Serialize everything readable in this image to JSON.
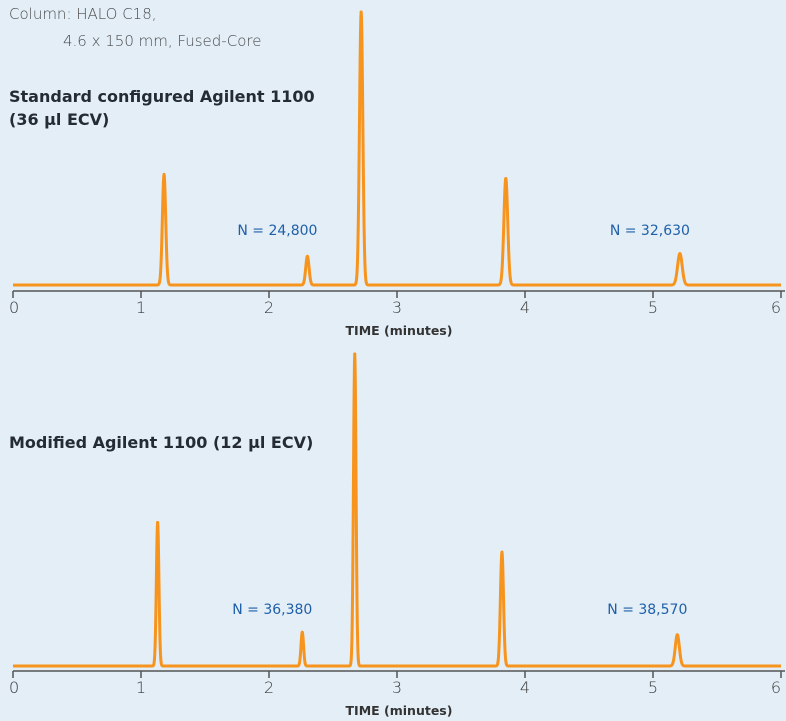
{
  "column_info": {
    "line1": "Column: HALO C18,",
    "line2": "4.6 x 150 mm, Fused-Core"
  },
  "colors": {
    "trace": "#f7941d",
    "axis": "#555555",
    "annotation": "#1f5fa8",
    "background": "#e3eef7"
  },
  "chart_data": [
    {
      "type": "line",
      "title": "Standard configured Agilent 1100 (36 µl ECV)",
      "title_lines": [
        "Standard configured Agilent 1100",
        "(36 µl ECV)"
      ],
      "xlabel": "TIME (minutes)",
      "ylabel": "",
      "xlim": [
        0,
        6
      ],
      "ylim": [
        0,
        100
      ],
      "x_ticks": [
        "0",
        "1",
        "2",
        "3",
        "4",
        "5",
        "6"
      ],
      "grid": false,
      "baseline": 0,
      "peaks": [
        {
          "t": 1.18,
          "height": 40.5,
          "width": 0.013
        },
        {
          "t": 2.3,
          "height": 10.5,
          "width": 0.013
        },
        {
          "t": 2.72,
          "height": 100,
          "width": 0.013
        },
        {
          "t": 3.85,
          "height": 39,
          "width": 0.015
        },
        {
          "t": 5.21,
          "height": 11.5,
          "width": 0.018
        }
      ],
      "annotations": [
        {
          "text": "N = 24,800",
          "x": 2.3
        },
        {
          "text": "N = 32,630",
          "x": 5.21
        }
      ]
    },
    {
      "type": "line",
      "title": "Modified Agilent 1100 (12 µl ECV)",
      "title_lines": [
        "Modified Agilent 1100 (12 µl ECV)"
      ],
      "xlabel": "TIME (minutes)",
      "ylabel": "",
      "xlim": [
        0,
        6
      ],
      "ylim": [
        0,
        100
      ],
      "x_ticks": [
        "0",
        "1",
        "2",
        "3",
        "4",
        "5",
        "6"
      ],
      "grid": false,
      "baseline": 0,
      "peaks": [
        {
          "t": 1.13,
          "height": 46,
          "width": 0.01
        },
        {
          "t": 2.26,
          "height": 10.8,
          "width": 0.01
        },
        {
          "t": 2.67,
          "height": 100,
          "width": 0.01
        },
        {
          "t": 3.82,
          "height": 36.5,
          "width": 0.012
        },
        {
          "t": 5.19,
          "height": 10,
          "width": 0.016
        }
      ],
      "annotations": [
        {
          "text": "N = 36,380",
          "x": 2.26
        },
        {
          "text": "N = 38,570",
          "x": 5.19
        }
      ]
    }
  ]
}
